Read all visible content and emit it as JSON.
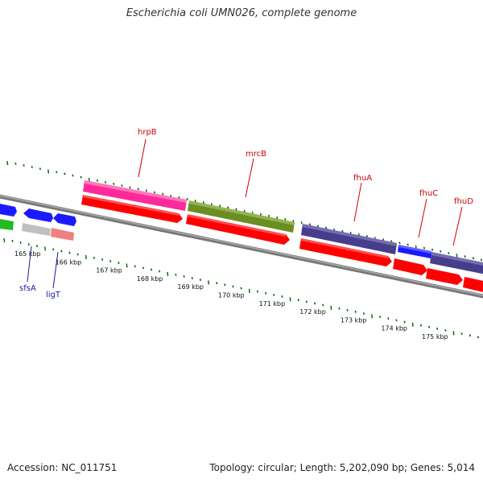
{
  "title": "Escherichia coli UMN026, complete genome",
  "footer": {
    "accession": "Accession: NC_011751",
    "summary": "Topology: circular; Length: 5,202,090 bp; Genes: 5,014"
  },
  "colors": {
    "hrpB": "#ff2a99",
    "mrcB": "#6b8e23",
    "fhuA": "#483d8b",
    "fhuC": "#0000ff",
    "fhuD": "#483d8b",
    "cds": "#ff0000",
    "backbone": "#808080",
    "ticks": "#006400",
    "label_red": "#cc0000",
    "label_blue": "#1a1aa6"
  },
  "genes": {
    "hrpB": "hrpB",
    "mrcB": "mrcB",
    "fhuA": "fhuA",
    "fhuC": "fhuC",
    "fhuD": "fhuD",
    "sfsA": "sfsA",
    "ligT": "ligT"
  },
  "scale_labels": [
    "165 kbp",
    "166 kbp",
    "167 kbp",
    "168 kbp",
    "169 kbp",
    "170 kbp",
    "171 kbp",
    "172 kbp",
    "173 kbp",
    "174 kbp",
    "175 kbp"
  ]
}
